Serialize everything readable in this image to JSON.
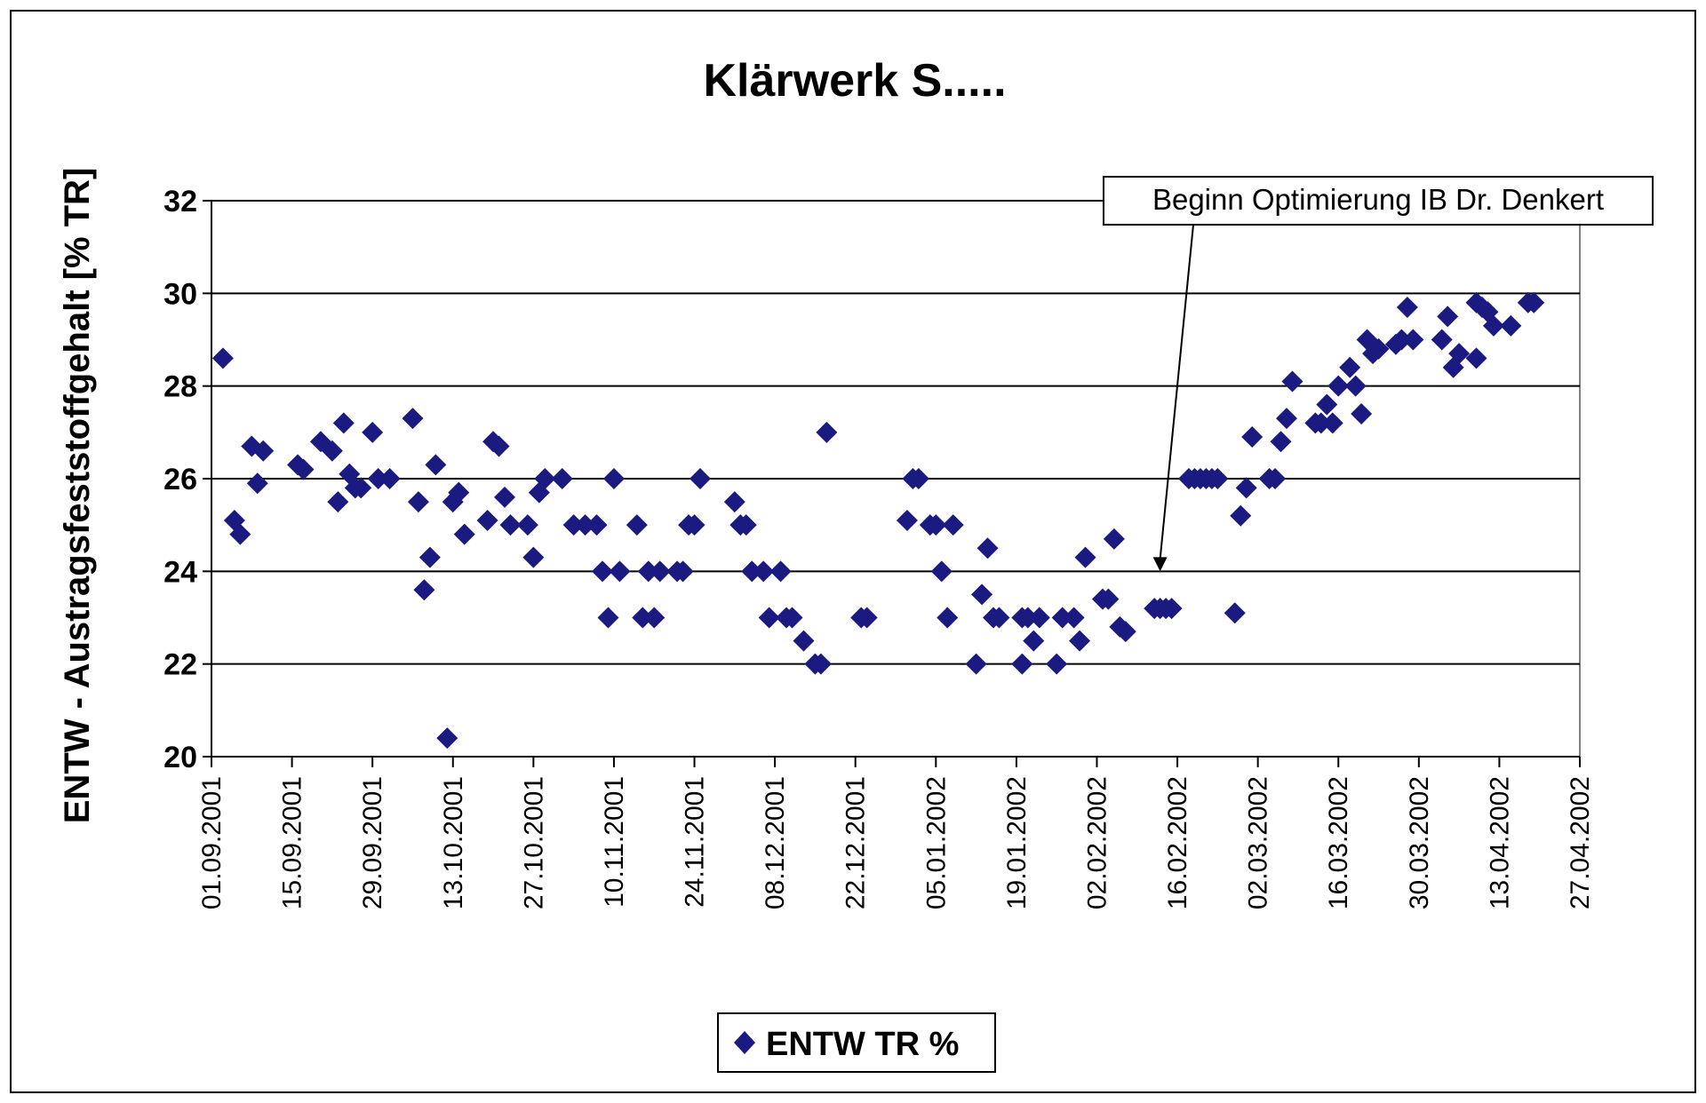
{
  "chart_data": {
    "type": "scatter",
    "title": "Klärwerk S.....",
    "xlabel": "",
    "ylabel": "ENTW - Austragsfeststoffgehalt [% TR]",
    "ylim": [
      20,
      32
    ],
    "yticks": [
      "20",
      "22",
      "24",
      "26",
      "28",
      "30",
      "32"
    ],
    "xlim": [
      "2001-09-01",
      "2002-04-27"
    ],
    "xticks": [
      "01.09.2001",
      "15.09.2001",
      "29.09.2001",
      "13.10.2001",
      "27.10.2001",
      "10.11.2001",
      "24.11.2001",
      "08.12.2001",
      "22.12.2001",
      "05.01.2002",
      "19.01.2002",
      "02.02.2002",
      "16.02.2002",
      "02.03.2002",
      "16.03.2002",
      "30.03.2002",
      "13.04.2002",
      "27.04.2002"
    ],
    "grid": "horizontal",
    "legend_position": "bottom",
    "marker_color": "#1a1a80",
    "annotation": {
      "text": "Beginn Optimierung IB Dr. Denkert",
      "target": {
        "x": "2002-02-13",
        "y": 24.0
      }
    },
    "series": [
      {
        "name": "ENTW TR %",
        "marker": "diamond",
        "points": [
          {
            "x": "2001-09-03",
            "y": 28.6
          },
          {
            "x": "2001-09-05",
            "y": 25.1
          },
          {
            "x": "2001-09-06",
            "y": 24.8
          },
          {
            "x": "2001-09-08",
            "y": 26.7
          },
          {
            "x": "2001-09-09",
            "y": 25.9
          },
          {
            "x": "2001-09-10",
            "y": 26.6
          },
          {
            "x": "2001-09-16",
            "y": 26.3
          },
          {
            "x": "2001-09-17",
            "y": 26.2
          },
          {
            "x": "2001-09-20",
            "y": 26.8
          },
          {
            "x": "2001-09-22",
            "y": 26.6
          },
          {
            "x": "2001-09-23",
            "y": 25.5
          },
          {
            "x": "2001-09-24",
            "y": 27.2
          },
          {
            "x": "2001-09-25",
            "y": 26.1
          },
          {
            "x": "2001-09-26",
            "y": 25.8
          },
          {
            "x": "2001-09-27",
            "y": 25.8
          },
          {
            "x": "2001-09-29",
            "y": 27.0
          },
          {
            "x": "2001-09-30",
            "y": 26.0
          },
          {
            "x": "2001-10-02",
            "y": 26.0
          },
          {
            "x": "2001-10-06",
            "y": 27.3
          },
          {
            "x": "2001-10-07",
            "y": 25.5
          },
          {
            "x": "2001-10-08",
            "y": 23.6
          },
          {
            "x": "2001-10-09",
            "y": 24.3
          },
          {
            "x": "2001-10-10",
            "y": 26.3
          },
          {
            "x": "2001-10-12",
            "y": 20.4
          },
          {
            "x": "2001-10-13",
            "y": 25.5
          },
          {
            "x": "2001-10-14",
            "y": 25.7
          },
          {
            "x": "2001-10-15",
            "y": 24.8
          },
          {
            "x": "2001-10-19",
            "y": 25.1
          },
          {
            "x": "2001-10-20",
            "y": 26.8
          },
          {
            "x": "2001-10-21",
            "y": 26.7
          },
          {
            "x": "2001-10-22",
            "y": 25.6
          },
          {
            "x": "2001-10-23",
            "y": 25.0
          },
          {
            "x": "2001-10-26",
            "y": 25.0
          },
          {
            "x": "2001-10-27",
            "y": 24.3
          },
          {
            "x": "2001-10-28",
            "y": 25.7
          },
          {
            "x": "2001-10-29",
            "y": 26.0
          },
          {
            "x": "2001-11-01",
            "y": 26.0
          },
          {
            "x": "2001-11-03",
            "y": 25.0
          },
          {
            "x": "2001-11-05",
            "y": 25.0
          },
          {
            "x": "2001-11-07",
            "y": 25.0
          },
          {
            "x": "2001-11-08",
            "y": 24.0
          },
          {
            "x": "2001-11-09",
            "y": 23.0
          },
          {
            "x": "2001-11-10",
            "y": 26.0
          },
          {
            "x": "2001-11-11",
            "y": 24.0
          },
          {
            "x": "2001-11-14",
            "y": 25.0
          },
          {
            "x": "2001-11-15",
            "y": 23.0
          },
          {
            "x": "2001-11-16",
            "y": 24.0
          },
          {
            "x": "2001-11-17",
            "y": 23.0
          },
          {
            "x": "2001-11-18",
            "y": 24.0
          },
          {
            "x": "2001-11-21",
            "y": 24.0
          },
          {
            "x": "2001-11-22",
            "y": 24.0
          },
          {
            "x": "2001-11-23",
            "y": 25.0
          },
          {
            "x": "2001-11-24",
            "y": 25.0
          },
          {
            "x": "2001-11-25",
            "y": 26.0
          },
          {
            "x": "2001-12-01",
            "y": 25.5
          },
          {
            "x": "2001-12-02",
            "y": 25.0
          },
          {
            "x": "2001-12-03",
            "y": 25.0
          },
          {
            "x": "2001-12-04",
            "y": 24.0
          },
          {
            "x": "2001-12-06",
            "y": 24.0
          },
          {
            "x": "2001-12-07",
            "y": 23.0
          },
          {
            "x": "2001-12-09",
            "y": 24.0
          },
          {
            "x": "2001-12-10",
            "y": 23.0
          },
          {
            "x": "2001-12-11",
            "y": 23.0
          },
          {
            "x": "2001-12-13",
            "y": 22.5
          },
          {
            "x": "2001-12-15",
            "y": 22.0
          },
          {
            "x": "2001-12-16",
            "y": 22.0
          },
          {
            "x": "2001-12-17",
            "y": 27.0
          },
          {
            "x": "2001-12-23",
            "y": 23.0
          },
          {
            "x": "2001-12-24",
            "y": 23.0
          },
          {
            "x": "2001-12-31",
            "y": 25.1
          },
          {
            "x": "2002-01-01",
            "y": 26.0
          },
          {
            "x": "2002-01-02",
            "y": 26.0
          },
          {
            "x": "2002-01-04",
            "y": 25.0
          },
          {
            "x": "2002-01-05",
            "y": 25.0
          },
          {
            "x": "2002-01-06",
            "y": 24.0
          },
          {
            "x": "2002-01-07",
            "y": 23.0
          },
          {
            "x": "2002-01-08",
            "y": 25.0
          },
          {
            "x": "2002-01-12",
            "y": 22.0
          },
          {
            "x": "2002-01-13",
            "y": 23.5
          },
          {
            "x": "2002-01-14",
            "y": 24.5
          },
          {
            "x": "2002-01-15",
            "y": 23.0
          },
          {
            "x": "2002-01-16",
            "y": 23.0
          },
          {
            "x": "2002-01-20",
            "y": 23.0
          },
          {
            "x": "2002-01-20",
            "y": 22.0
          },
          {
            "x": "2002-01-21",
            "y": 23.0
          },
          {
            "x": "2002-01-22",
            "y": 22.5
          },
          {
            "x": "2002-01-23",
            "y": 23.0
          },
          {
            "x": "2002-01-26",
            "y": 22.0
          },
          {
            "x": "2002-01-27",
            "y": 23.0
          },
          {
            "x": "2002-01-29",
            "y": 23.0
          },
          {
            "x": "2002-01-30",
            "y": 22.5
          },
          {
            "x": "2002-01-31",
            "y": 24.3
          },
          {
            "x": "2002-02-03",
            "y": 23.4
          },
          {
            "x": "2002-02-04",
            "y": 23.4
          },
          {
            "x": "2002-02-05",
            "y": 24.7
          },
          {
            "x": "2002-02-06",
            "y": 22.8
          },
          {
            "x": "2002-02-07",
            "y": 22.7
          },
          {
            "x": "2002-02-12",
            "y": 23.2
          },
          {
            "x": "2002-02-13",
            "y": 23.2
          },
          {
            "x": "2002-02-14",
            "y": 23.2
          },
          {
            "x": "2002-02-15",
            "y": 23.2
          },
          {
            "x": "2002-02-18",
            "y": 26.0
          },
          {
            "x": "2002-02-19",
            "y": 26.0
          },
          {
            "x": "2002-02-20",
            "y": 26.0
          },
          {
            "x": "2002-02-21",
            "y": 26.0
          },
          {
            "x": "2002-02-22",
            "y": 26.0
          },
          {
            "x": "2002-02-23",
            "y": 26.0
          },
          {
            "x": "2002-02-26",
            "y": 23.1
          },
          {
            "x": "2002-02-27",
            "y": 25.2
          },
          {
            "x": "2002-02-28",
            "y": 25.8
          },
          {
            "x": "2002-03-01",
            "y": 26.9
          },
          {
            "x": "2002-03-04",
            "y": 26.0
          },
          {
            "x": "2002-03-05",
            "y": 26.0
          },
          {
            "x": "2002-03-06",
            "y": 26.8
          },
          {
            "x": "2002-03-07",
            "y": 27.3
          },
          {
            "x": "2002-03-08",
            "y": 28.1
          },
          {
            "x": "2002-03-12",
            "y": 27.2
          },
          {
            "x": "2002-03-13",
            "y": 27.2
          },
          {
            "x": "2002-03-14",
            "y": 27.6
          },
          {
            "x": "2002-03-15",
            "y": 27.2
          },
          {
            "x": "2002-03-16",
            "y": 28.0
          },
          {
            "x": "2002-03-18",
            "y": 28.4
          },
          {
            "x": "2002-03-19",
            "y": 28.0
          },
          {
            "x": "2002-03-20",
            "y": 27.4
          },
          {
            "x": "2002-03-21",
            "y": 29.0
          },
          {
            "x": "2002-03-22",
            "y": 28.7
          },
          {
            "x": "2002-03-23",
            "y": 28.8
          },
          {
            "x": "2002-03-26",
            "y": 28.9
          },
          {
            "x": "2002-03-27",
            "y": 29.0
          },
          {
            "x": "2002-03-28",
            "y": 29.7
          },
          {
            "x": "2002-03-29",
            "y": 29.0
          },
          {
            "x": "2002-04-03",
            "y": 29.0
          },
          {
            "x": "2002-04-04",
            "y": 29.5
          },
          {
            "x": "2002-04-05",
            "y": 28.4
          },
          {
            "x": "2002-04-06",
            "y": 28.7
          },
          {
            "x": "2002-04-09",
            "y": 28.6
          },
          {
            "x": "2002-04-09",
            "y": 29.8
          },
          {
            "x": "2002-04-10",
            "y": 29.7
          },
          {
            "x": "2002-04-11",
            "y": 29.6
          },
          {
            "x": "2002-04-12",
            "y": 29.3
          },
          {
            "x": "2002-04-15",
            "y": 29.3
          },
          {
            "x": "2002-04-18",
            "y": 29.8
          },
          {
            "x": "2002-04-19",
            "y": 29.8
          }
        ]
      }
    ]
  }
}
